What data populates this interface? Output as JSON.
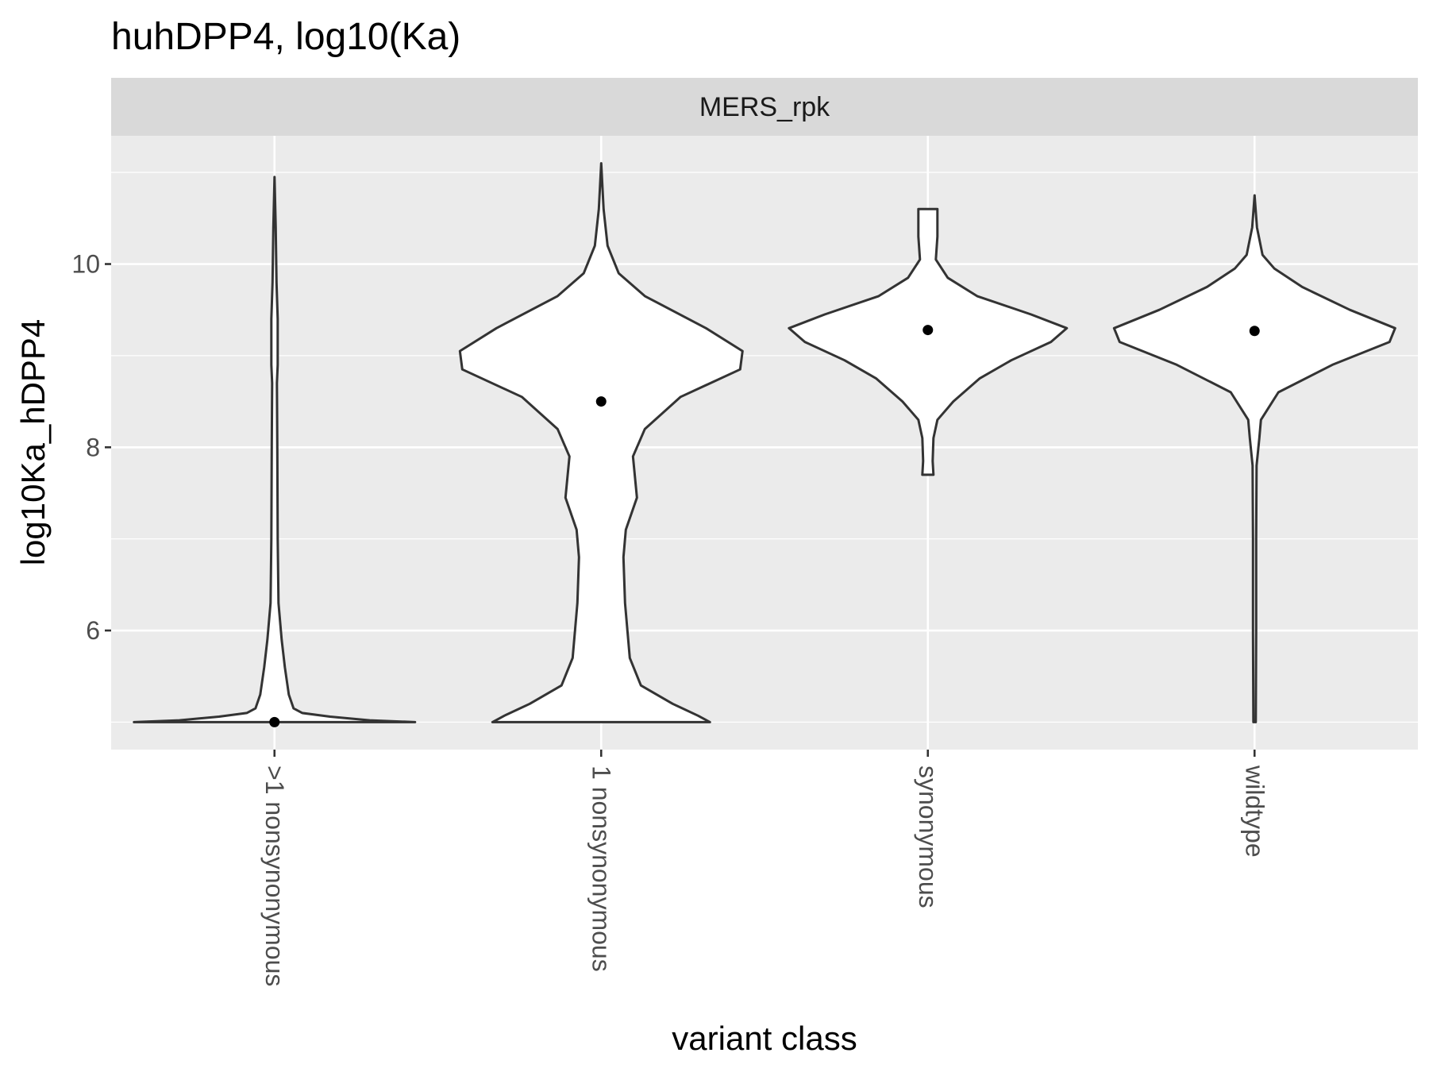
{
  "chart_data": {
    "type": "violin",
    "title": "huhDPP4, log10(Ka)",
    "facet_label": "MERS_rpk",
    "xlabel": "variant class",
    "ylabel": "log10Ka_hDPP4",
    "ylim": [
      4.7,
      11.4
    ],
    "y_ticks": [
      6,
      8,
      10
    ],
    "categories": [
      ">1 nonsynonymous",
      "1 nonsynonymous",
      "synonymous",
      "wildtype"
    ],
    "medians": [
      5.0,
      8.5,
      9.28,
      9.27
    ],
    "ranges": [
      [
        5.0,
        10.95
      ],
      [
        5.0,
        11.1
      ],
      [
        7.7,
        10.6
      ],
      [
        5.0,
        10.75
      ]
    ],
    "grid": true,
    "colors": {
      "panel": "#ebebeb",
      "strip": "#d9d9d9",
      "grid": "#ffffff",
      "outline": "#333333",
      "fill": "#ffffff",
      "point": "#000000"
    }
  }
}
